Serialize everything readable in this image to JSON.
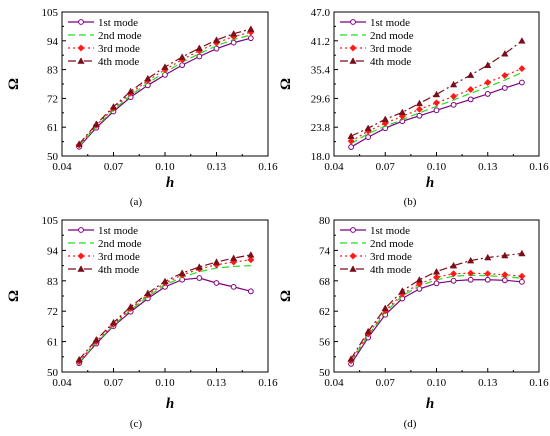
{
  "chart_data": [
    {
      "type": "line",
      "panel_label": "(a)",
      "xlabel": "h",
      "ylabel": "Ω",
      "xlim": [
        0.04,
        0.16
      ],
      "ylim": [
        50,
        105
      ],
      "xticks": [
        "0.04",
        "0.07",
        "0.10",
        "0.13",
        "0.16"
      ],
      "yticks": [
        "50",
        "61",
        "72",
        "83",
        "94",
        "105"
      ],
      "legend_position": "top-left",
      "x": [
        0.05,
        0.06,
        0.07,
        0.08,
        0.09,
        0.1,
        0.11,
        0.12,
        0.13,
        0.14,
        0.15
      ],
      "series": [
        {
          "name": "1st mode",
          "values": [
            53.5,
            60.8,
            67.0,
            72.5,
            77.0,
            81.0,
            84.7,
            88.0,
            91.0,
            93.3,
            95.0
          ]
        },
        {
          "name": "2nd mode",
          "values": [
            53.8,
            61.2,
            67.6,
            73.2,
            77.9,
            82.0,
            85.8,
            89.1,
            92.1,
            94.5,
            96.2
          ]
        },
        {
          "name": "3rd mode",
          "values": [
            54.2,
            61.7,
            68.2,
            74.0,
            78.8,
            83.0,
            86.8,
            90.2,
            93.2,
            95.6,
            97.3
          ]
        },
        {
          "name": "4th mode",
          "values": [
            54.6,
            62.2,
            68.8,
            74.7,
            79.6,
            84.0,
            87.8,
            91.2,
            94.3,
            96.7,
            98.5
          ]
        }
      ]
    },
    {
      "type": "line",
      "panel_label": "(b)",
      "xlabel": "h",
      "ylabel": "Ω",
      "xlim": [
        0.04,
        0.16
      ],
      "ylim": [
        18.0,
        47.0
      ],
      "xticks": [
        "0.04",
        "0.07",
        "0.10",
        "0.13",
        "0.16"
      ],
      "yticks": [
        "18.0",
        "23.8",
        "29.6",
        "35.4",
        "41.2",
        "47.0"
      ],
      "legend_position": "top-left",
      "x": [
        0.05,
        0.06,
        0.07,
        0.08,
        0.09,
        0.1,
        0.11,
        0.12,
        0.13,
        0.14,
        0.15
      ],
      "series": [
        {
          "name": "1st mode",
          "values": [
            19.8,
            21.8,
            23.6,
            25.0,
            26.1,
            27.2,
            28.3,
            29.4,
            30.5,
            31.7,
            32.8
          ]
        },
        {
          "name": "2nd mode",
          "values": [
            20.5,
            22.5,
            24.0,
            25.3,
            26.7,
            28.0,
            29.3,
            30.6,
            31.9,
            33.3,
            34.8
          ]
        },
        {
          "name": "3rd mode",
          "values": [
            21.0,
            23.0,
            24.6,
            26.0,
            27.4,
            28.7,
            30.0,
            31.4,
            32.8,
            34.2,
            35.6
          ]
        },
        {
          "name": "4th mode",
          "values": [
            22.0,
            23.6,
            25.4,
            26.8,
            28.6,
            30.4,
            32.4,
            34.3,
            36.3,
            38.6,
            41.2
          ]
        }
      ]
    },
    {
      "type": "line",
      "panel_label": "(c)",
      "xlabel": "h",
      "ylabel": "Ω",
      "xlim": [
        0.04,
        0.16
      ],
      "ylim": [
        50,
        105
      ],
      "xticks": [
        "0.04",
        "0.07",
        "0.10",
        "0.13",
        "0.16"
      ],
      "yticks": [
        "50",
        "61",
        "72",
        "83",
        "94",
        "105"
      ],
      "legend_position": "top-left",
      "x": [
        0.05,
        0.06,
        0.07,
        0.08,
        0.09,
        0.1,
        0.11,
        0.12,
        0.13,
        0.14,
        0.15
      ],
      "series": [
        {
          "name": "1st mode",
          "values": [
            53.2,
            60.3,
            66.6,
            71.8,
            76.6,
            80.8,
            83.4,
            84.0,
            82.2,
            80.8,
            79.2
          ]
        },
        {
          "name": "2nd mode",
          "values": [
            53.5,
            60.6,
            66.9,
            72.5,
            77.3,
            81.5,
            84.3,
            86.3,
            87.6,
            88.2,
            88.5
          ]
        },
        {
          "name": "3rd mode",
          "values": [
            53.8,
            61.0,
            67.3,
            73.0,
            77.9,
            82.2,
            85.1,
            87.3,
            88.8,
            89.8,
            90.6
          ]
        },
        {
          "name": "4th mode",
          "values": [
            54.5,
            61.7,
            67.9,
            73.6,
            78.5,
            82.8,
            85.8,
            88.0,
            89.8,
            91.2,
            92.4
          ]
        }
      ]
    },
    {
      "type": "line",
      "panel_label": "(d)",
      "xlabel": "h",
      "ylabel": "Ω",
      "xlim": [
        0.04,
        0.16
      ],
      "ylim": [
        50,
        80
      ],
      "xticks": [
        "0.04",
        "0.07",
        "0.10",
        "0.13",
        "0.16"
      ],
      "yticks": [
        "50",
        "56",
        "62",
        "68",
        "74",
        "80"
      ],
      "legend_position": "top-left",
      "x": [
        0.05,
        0.06,
        0.07,
        0.08,
        0.09,
        0.1,
        0.11,
        0.12,
        0.13,
        0.14,
        0.15
      ],
      "series": [
        {
          "name": "1st mode",
          "values": [
            51.6,
            56.8,
            61.3,
            64.5,
            66.4,
            67.5,
            68.0,
            68.2,
            68.2,
            68.1,
            67.8
          ]
        },
        {
          "name": "2nd mode",
          "values": [
            52.0,
            57.2,
            61.8,
            65.0,
            67.0,
            68.2,
            68.9,
            69.1,
            69.0,
            68.8,
            68.5
          ]
        },
        {
          "name": "3rd mode",
          "values": [
            52.2,
            57.5,
            62.1,
            65.4,
            67.4,
            68.7,
            69.4,
            69.5,
            69.4,
            69.2,
            68.9
          ]
        },
        {
          "name": "4th mode",
          "values": [
            52.6,
            58.0,
            62.6,
            66.0,
            68.2,
            69.8,
            71.0,
            72.0,
            72.6,
            73.0,
            73.4
          ]
        }
      ]
    }
  ],
  "styles": {
    "colors": [
      "#800080",
      "#22dd22",
      "#ff1a1a",
      "#7a0f1a"
    ],
    "markers": [
      "circle-open",
      "none",
      "diamond",
      "triangle"
    ],
    "dashes": [
      "none",
      "7,4",
      "2,3",
      "8,3,2,3"
    ]
  }
}
